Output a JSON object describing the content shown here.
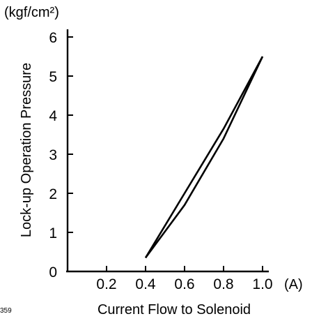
{
  "chart_data": {
    "type": "line",
    "title": "",
    "xlabel": "Current Flow to Solenoid",
    "ylabel": "Lock-up Operation Pressure",
    "x_unit": "(A)",
    "y_unit": "(kgf/cm²)",
    "figure_number": "359",
    "xlim": [
      0,
      1.0
    ],
    "ylim": [
      0,
      6
    ],
    "x_ticks": [
      "0.2",
      "0.4",
      "0.6",
      "0.8",
      "1.0"
    ],
    "y_ticks": [
      "0",
      "1",
      "2",
      "3",
      "4",
      "5",
      "6"
    ],
    "grid": false,
    "series": [
      {
        "x": [
          0.4,
          0.6,
          0.8,
          1.0
        ],
        "y": [
          0.35,
          2.0,
          3.65,
          5.5
        ]
      },
      {
        "x": [
          0.4,
          0.6,
          0.8,
          1.0
        ],
        "y": [
          0.35,
          1.7,
          3.4,
          5.5
        ]
      }
    ]
  }
}
